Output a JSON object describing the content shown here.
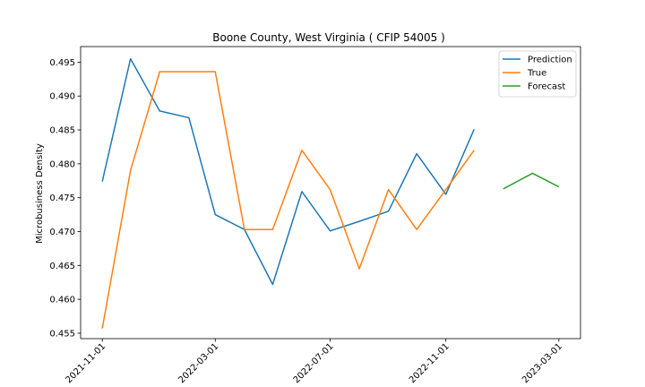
{
  "chart_data": {
    "type": "line",
    "title": "Boone County, West Virginia ( CFIP 54005 )",
    "xlabel": "",
    "ylabel": "Microbusiness Density",
    "x_ticks": [
      "2021-11-01",
      "2022-03-01",
      "2022-07-01",
      "2022-11-01",
      "2023-03-01"
    ],
    "y_ticks": [
      "0.455",
      "0.460",
      "0.465",
      "0.470",
      "0.475",
      "0.480",
      "0.485",
      "0.490",
      "0.495"
    ],
    "ylim": [
      0.4542,
      0.4973
    ],
    "xlim": [
      "2021-10-09",
      "2023-03-24"
    ],
    "grid": false,
    "legend_position": "top-right",
    "series": [
      {
        "name": "Prediction",
        "color": "#1f77b4",
        "x": [
          "2021-11-01",
          "2021-12-01",
          "2022-01-01",
          "2022-02-01",
          "2022-03-01",
          "2022-04-01",
          "2022-05-01",
          "2022-06-01",
          "2022-07-01",
          "2022-08-01",
          "2022-09-01",
          "2022-10-01",
          "2022-11-01",
          "2022-12-01"
        ],
        "y": [
          0.4774,
          0.4955,
          0.4878,
          0.4868,
          0.4725,
          0.4703,
          0.4622,
          0.4759,
          0.4701,
          0.4715,
          0.473,
          0.4815,
          0.4755,
          0.4851
        ]
      },
      {
        "name": "True",
        "color": "#ff7f0e",
        "x": [
          "2021-11-01",
          "2021-12-01",
          "2022-01-01",
          "2022-02-01",
          "2022-03-01",
          "2022-04-01",
          "2022-05-01",
          "2022-06-01",
          "2022-07-01",
          "2022-08-01",
          "2022-09-01",
          "2022-10-01",
          "2022-11-01",
          "2022-12-01"
        ],
        "y": [
          0.4557,
          0.479,
          0.4936,
          0.4936,
          0.4936,
          0.4703,
          0.4703,
          0.482,
          0.4762,
          0.4645,
          0.4762,
          0.4703,
          0.4762,
          0.482
        ]
      },
      {
        "name": "Forecast",
        "color": "#2ca02c",
        "x": [
          "2023-01-01",
          "2023-02-01",
          "2023-03-01"
        ],
        "y": [
          0.4763,
          0.4786,
          0.4766
        ]
      }
    ]
  }
}
